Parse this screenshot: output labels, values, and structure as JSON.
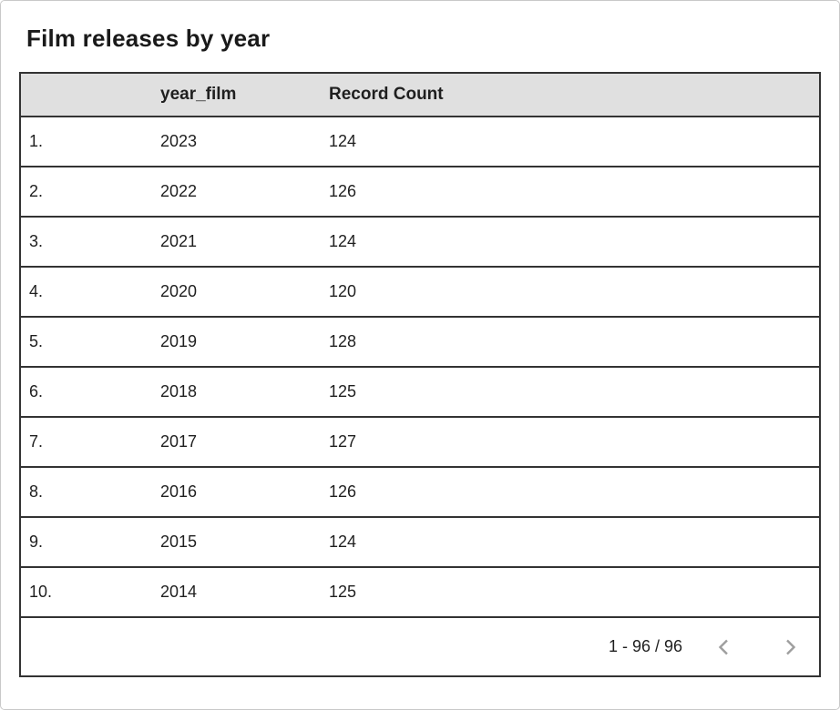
{
  "title": "Film releases by year",
  "table": {
    "header": {
      "index_label": "",
      "columns": [
        "year_film",
        "Record Count"
      ]
    },
    "rows": [
      {
        "index": "1.",
        "year_film": "2023",
        "record_count": "124"
      },
      {
        "index": "2.",
        "year_film": "2022",
        "record_count": "126"
      },
      {
        "index": "3.",
        "year_film": "2021",
        "record_count": "124"
      },
      {
        "index": "4.",
        "year_film": "2020",
        "record_count": "120"
      },
      {
        "index": "5.",
        "year_film": "2019",
        "record_count": "128"
      },
      {
        "index": "6.",
        "year_film": "2018",
        "record_count": "125"
      },
      {
        "index": "7.",
        "year_film": "2017",
        "record_count": "127"
      },
      {
        "index": "8.",
        "year_film": "2016",
        "record_count": "126"
      },
      {
        "index": "9.",
        "year_film": "2015",
        "record_count": "124"
      },
      {
        "index": "10.",
        "year_film": "2014",
        "record_count": "125"
      }
    ]
  },
  "pagination": {
    "range": "1 - 96 / 96",
    "prev_icon": "chevron-left-icon",
    "next_icon": "chevron-right-icon"
  },
  "colors": {
    "header_bg": "#e0e0e0",
    "table_border": "#333333",
    "text": "#1f1f1f",
    "chevron": "#9e9e9e",
    "card_border": "#c9c9c9"
  }
}
